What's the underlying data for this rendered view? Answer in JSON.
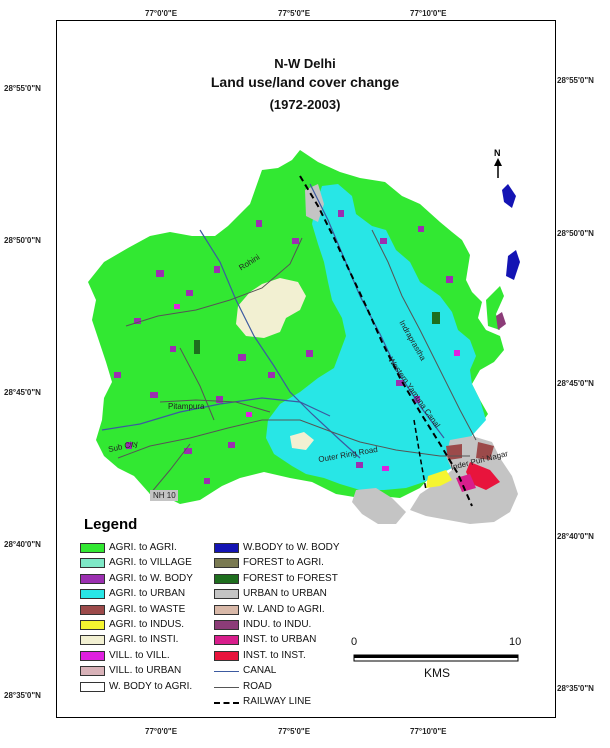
{
  "title": {
    "line1": "N-W Delhi",
    "line2": "Land use/land cover change",
    "line3": "(1972-2003)"
  },
  "coords": {
    "top": [
      "77°0'0\"E",
      "77°5'0\"E",
      "77°10'0\"E"
    ],
    "bottom": [
      "77°0'0\"E",
      "77°5'0\"E",
      "77°10'0\"E"
    ],
    "left": [
      "28°55'0\"N",
      "28°50'0\"N",
      "28°45'0\"N",
      "28°40'0\"N",
      "28°35'0\"N"
    ],
    "right": [
      "28°55'0\"N",
      "28°50'0\"N",
      "28°45'0\"N",
      "28°40'0\"N",
      "28°35'0\"N"
    ]
  },
  "north_label": "N",
  "map_labels": {
    "outer_ring_road": "Outer Ring Road",
    "pitampura": "Pitampura",
    "rohini": "Rohini",
    "nh10": "NH 10",
    "sub_city": "Sub City",
    "canal_road": "Western Yamuna Canal",
    "indraprastha": "Indraprastha",
    "inderpuri": "Inder Puri Nagar"
  },
  "legend": {
    "title": "Legend",
    "col1": [
      {
        "label": "AGRI. to AGRI.",
        "color": "#32e832"
      },
      {
        "label": "AGRI. to VILLAGE",
        "color": "#7ee8c6"
      },
      {
        "label": "AGRI. to W. BODY",
        "color": "#9b2fb0"
      },
      {
        "label": "AGRI. to URBAN",
        "color": "#28e6e6"
      },
      {
        "label": "AGRI. to WASTE",
        "color": "#9c4a4a"
      },
      {
        "label": "AGRI. to INDUS.",
        "color": "#f5f530"
      },
      {
        "label": "AGRI. to INSTI.",
        "color": "#f2f0d2"
      },
      {
        "label": "VILL. to VILL.",
        "color": "#e020e0"
      },
      {
        "label": "VILL. to URBAN",
        "color": "#d8b2b8"
      },
      {
        "label": "W. BODY to AGRI.",
        "color": "#ffffff"
      }
    ],
    "col2": [
      {
        "label": "W.BODY to W. BODY",
        "color": "#1414b4",
        "kind": "swatch"
      },
      {
        "label": "FOREST to AGRI.",
        "color": "#7a7a52",
        "kind": "swatch"
      },
      {
        "label": "FOREST to FOREST",
        "color": "#1e6e1e",
        "kind": "swatch"
      },
      {
        "label": "URBAN to URBAN",
        "color": "#c4c4c4",
        "kind": "swatch"
      },
      {
        "label": "W. LAND to AGRI.",
        "color": "#d8b8a8",
        "kind": "swatch"
      },
      {
        "label": "INDU. to INDU.",
        "color": "#8c3c78",
        "kind": "swatch"
      },
      {
        "label": "INST. to URBAN",
        "color": "#d81e8c",
        "kind": "swatch"
      },
      {
        "label": "INST. to INST.",
        "color": "#e8143c",
        "kind": "swatch"
      },
      {
        "label": "CANAL",
        "color": "#3c5aa0",
        "kind": "line"
      },
      {
        "label": "ROAD",
        "color": "#555555",
        "kind": "line"
      },
      {
        "label": "RAILWAY LINE",
        "color": "#000000",
        "kind": "dash"
      }
    ]
  },
  "scale": {
    "start": "0",
    "end": "10",
    "unit": "KMS"
  }
}
